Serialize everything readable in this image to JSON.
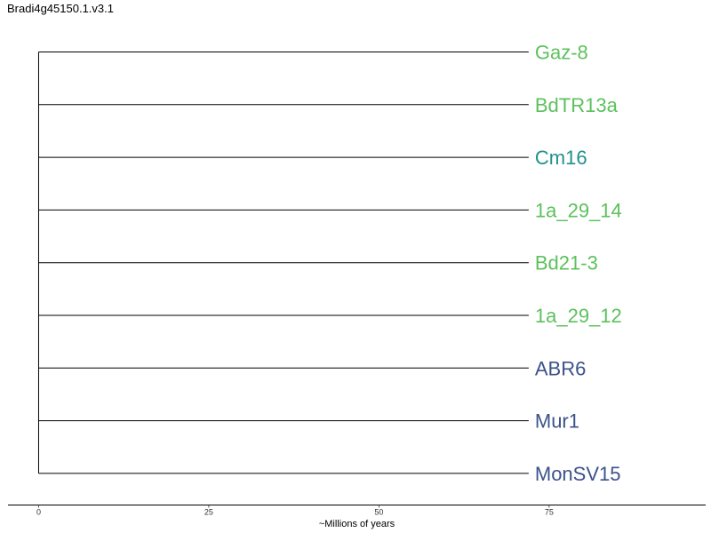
{
  "chart_data": {
    "type": "dendrogram",
    "title": "Bradi4g45150.1.v3.1",
    "xlabel": "~Millions of years",
    "xlim": [
      -4.5,
      98
    ],
    "xticks": [
      0,
      25,
      50,
      75
    ],
    "root_x": 0,
    "tips": [
      {
        "label": "Gaz-8",
        "branch_end": 72,
        "color": "#5cc15c"
      },
      {
        "label": "BdTR13a",
        "branch_end": 72,
        "color": "#5cc15c"
      },
      {
        "label": "Cm16",
        "branch_end": 72,
        "color": "#21908c"
      },
      {
        "label": "1a_29_14",
        "branch_end": 72,
        "color": "#5cc15c"
      },
      {
        "label": "Bd21-3",
        "branch_end": 72,
        "color": "#5cc15c"
      },
      {
        "label": "1a_29_12",
        "branch_end": 72,
        "color": "#5cc15c"
      },
      {
        "label": "ABR6",
        "branch_end": 72,
        "color": "#3b528b"
      },
      {
        "label": "Mur1",
        "branch_end": 72,
        "color": "#3b528b"
      },
      {
        "label": "MonSV15",
        "branch_end": 72,
        "color": "#3b528b"
      }
    ]
  }
}
